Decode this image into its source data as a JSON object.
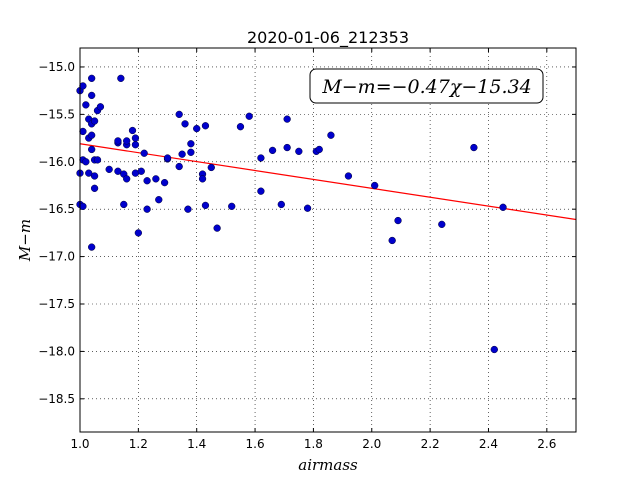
{
  "chart_data": {
    "type": "scatter",
    "title": "2020-01-06_212353",
    "xlabel": "airmass",
    "ylabel": "M−m",
    "xlim": [
      1.0,
      2.7
    ],
    "ylim": [
      -18.85,
      -14.8
    ],
    "y_inverted": true,
    "grid": true,
    "x_ticks": [
      1.0,
      1.2,
      1.4,
      1.6,
      1.8,
      2.0,
      2.2,
      2.4,
      2.6
    ],
    "x_tick_labels": [
      "1.0",
      "1.2",
      "1.4",
      "1.6",
      "1.8",
      "2.0",
      "2.2",
      "2.4",
      "2.6"
    ],
    "y_ticks": [
      -15.0,
      -15.5,
      -16.0,
      -16.5,
      -17.0,
      -17.5,
      -18.0,
      -18.5
    ],
    "y_tick_labels": [
      "−15.0",
      "−15.5",
      "−16.0",
      "−16.5",
      "−17.0",
      "−17.5",
      "−18.0",
      "−18.5"
    ],
    "annotation": "M−m=−0.47χ−15.34",
    "annotation_placement": "top-right",
    "fit_line": {
      "slope": -0.47,
      "intercept": -15.34,
      "color": "#ff0000"
    },
    "marker_color": "#0000cc",
    "points": [
      [
        1.0,
        -16.12
      ],
      [
        1.0,
        -15.25
      ],
      [
        1.0,
        -16.45
      ],
      [
        1.01,
        -15.2
      ],
      [
        1.01,
        -15.68
      ],
      [
        1.01,
        -15.98
      ],
      [
        1.01,
        -16.47
      ],
      [
        1.02,
        -15.4
      ],
      [
        1.02,
        -16.0
      ],
      [
        1.03,
        -15.55
      ],
      [
        1.03,
        -16.12
      ],
      [
        1.03,
        -15.75
      ],
      [
        1.04,
        -15.3
      ],
      [
        1.04,
        -15.72
      ],
      [
        1.04,
        -15.6
      ],
      [
        1.04,
        -15.87
      ],
      [
        1.04,
        -16.9
      ],
      [
        1.04,
        -15.12
      ],
      [
        1.05,
        -16.28
      ],
      [
        1.05,
        -16.15
      ],
      [
        1.05,
        -15.57
      ],
      [
        1.05,
        -15.98
      ],
      [
        1.06,
        -15.98
      ],
      [
        1.06,
        -15.46
      ],
      [
        1.07,
        -15.42
      ],
      [
        1.1,
        -16.08
      ],
      [
        1.13,
        -16.1
      ],
      [
        1.13,
        -15.8
      ],
      [
        1.13,
        -15.78
      ],
      [
        1.14,
        -15.12
      ],
      [
        1.15,
        -16.45
      ],
      [
        1.15,
        -16.13
      ],
      [
        1.16,
        -16.18
      ],
      [
        1.16,
        -15.82
      ],
      [
        1.16,
        -15.78
      ],
      [
        1.18,
        -15.67
      ],
      [
        1.19,
        -15.82
      ],
      [
        1.19,
        -15.75
      ],
      [
        1.19,
        -16.12
      ],
      [
        1.2,
        -16.75
      ],
      [
        1.21,
        -16.1
      ],
      [
        1.22,
        -15.91
      ],
      [
        1.23,
        -16.2
      ],
      [
        1.23,
        -16.5
      ],
      [
        1.26,
        -16.18
      ],
      [
        1.27,
        -16.4
      ],
      [
        1.29,
        -16.22
      ],
      [
        1.3,
        -15.97
      ],
      [
        1.3,
        -15.96
      ],
      [
        1.34,
        -15.5
      ],
      [
        1.34,
        -16.05
      ],
      [
        1.35,
        -15.92
      ],
      [
        1.36,
        -15.6
      ],
      [
        1.37,
        -16.5
      ],
      [
        1.38,
        -15.81
      ],
      [
        1.38,
        -15.9
      ],
      [
        1.4,
        -15.65
      ],
      [
        1.42,
        -16.13
      ],
      [
        1.42,
        -16.18
      ],
      [
        1.43,
        -16.46
      ],
      [
        1.43,
        -15.62
      ],
      [
        1.45,
        -16.06
      ],
      [
        1.47,
        -16.7
      ],
      [
        1.52,
        -16.47
      ],
      [
        1.55,
        -15.63
      ],
      [
        1.58,
        -15.52
      ],
      [
        1.62,
        -15.96
      ],
      [
        1.62,
        -16.31
      ],
      [
        1.66,
        -15.88
      ],
      [
        1.69,
        -16.45
      ],
      [
        1.71,
        -15.85
      ],
      [
        1.71,
        -15.55
      ],
      [
        1.75,
        -15.89
      ],
      [
        1.78,
        -16.49
      ],
      [
        1.81,
        -15.89
      ],
      [
        1.82,
        -15.87
      ],
      [
        1.86,
        -15.72
      ],
      [
        1.92,
        -16.15
      ],
      [
        2.01,
        -16.25
      ],
      [
        2.07,
        -16.83
      ],
      [
        2.09,
        -16.62
      ],
      [
        2.24,
        -16.66
      ],
      [
        2.35,
        -15.85
      ],
      [
        2.42,
        -17.98
      ],
      [
        2.45,
        -16.48
      ]
    ]
  }
}
